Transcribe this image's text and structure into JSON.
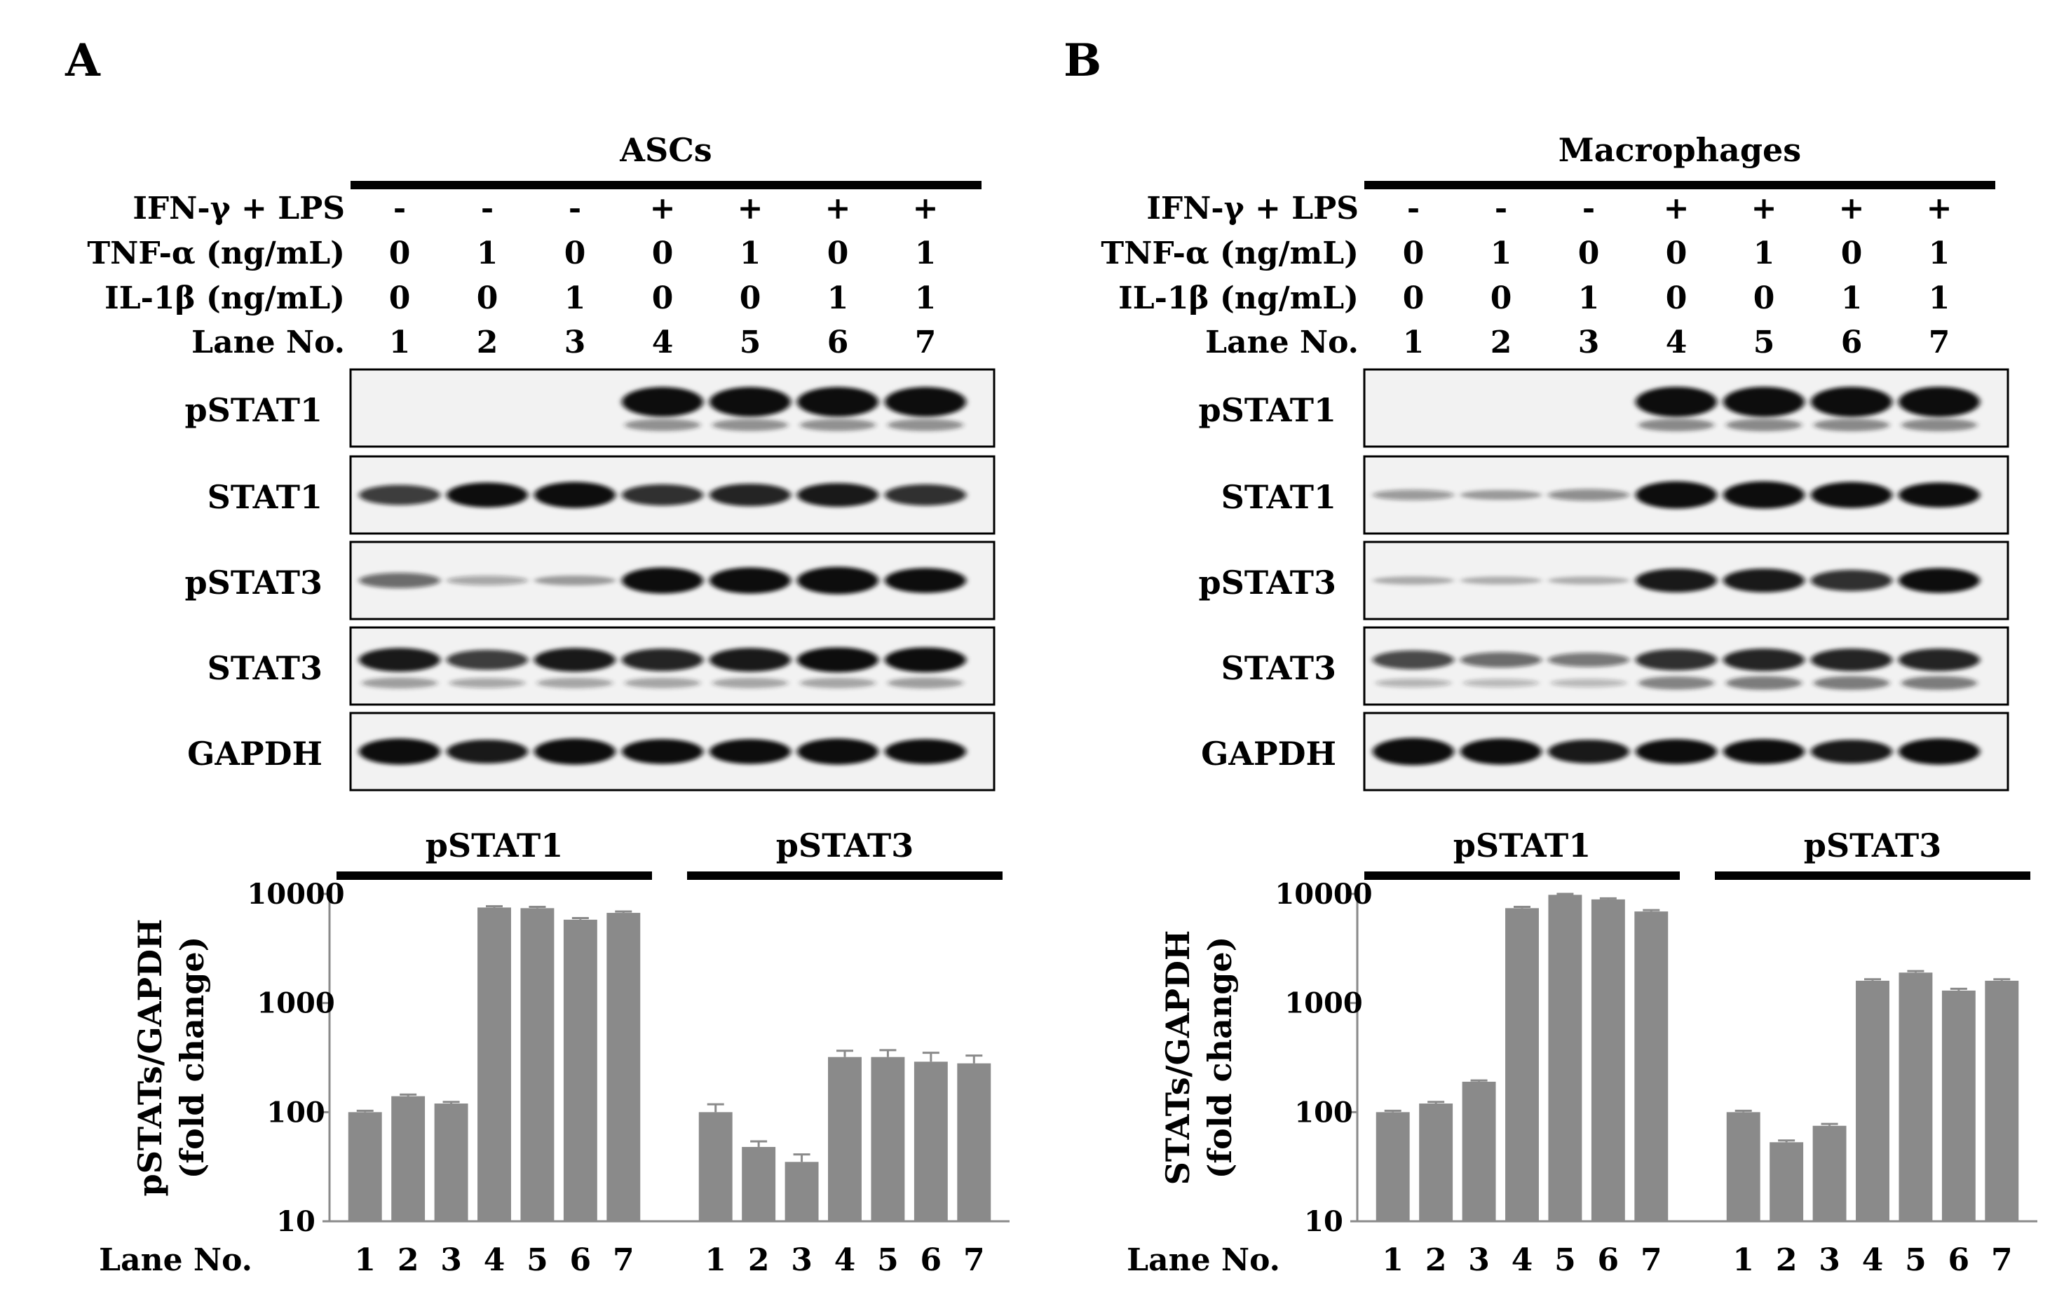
{
  "panels": [
    {
      "letter": "A",
      "cell_type": "ASCs",
      "conditions": {
        "rows": [
          {
            "label": "IFN-γ + LPS",
            "values": [
              "-",
              "-",
              "-",
              "+",
              "+",
              "+",
              "+"
            ]
          },
          {
            "label": "TNF-α (ng/mL)",
            "values": [
              "0",
              "1",
              "0",
              "0",
              "1",
              "0",
              "1"
            ]
          },
          {
            "label": "IL-1β (ng/mL)",
            "values": [
              "0",
              "0",
              "1",
              "0",
              "0",
              "1",
              "1"
            ]
          },
          {
            "label": "Lane No.",
            "values": [
              "1",
              "2",
              "3",
              "4",
              "5",
              "6",
              "7"
            ]
          }
        ]
      },
      "blots": [
        {
          "label": "pSTAT1",
          "main": [
            0,
            0,
            0,
            0.95,
            0.95,
            0.95,
            0.95
          ],
          "lower": [
            0,
            0,
            0,
            0.45,
            0.45,
            0.45,
            0.45
          ]
        },
        {
          "label": "STAT1",
          "main": [
            0.55,
            0.75,
            0.8,
            0.6,
            0.65,
            0.7,
            0.6
          ],
          "lower": [
            0,
            0,
            0,
            0,
            0,
            0,
            0
          ]
        },
        {
          "label": "pSTAT3",
          "main": [
            0.35,
            0.1,
            0.12,
            0.8,
            0.8,
            0.85,
            0.75
          ],
          "lower": [
            0,
            0,
            0,
            0,
            0,
            0,
            0
          ]
        },
        {
          "label": "STAT3",
          "main": [
            0.7,
            0.55,
            0.7,
            0.65,
            0.7,
            0.75,
            0.75
          ],
          "lower": [
            0.35,
            0.25,
            0.3,
            0.3,
            0.3,
            0.3,
            0.35
          ]
        },
        {
          "label": "GAPDH",
          "main": [
            0.8,
            0.7,
            0.8,
            0.75,
            0.75,
            0.8,
            0.75
          ],
          "lower": [
            0,
            0,
            0,
            0,
            0,
            0,
            0
          ]
        }
      ],
      "chart": {
        "ylabel": "pSTATs/GAPDH",
        "ylabel2": "(fold change)",
        "xlabel": "Lane No.",
        "yticks": [
          "10",
          "100",
          "1000",
          "10000"
        ]
      }
    },
    {
      "letter": "B",
      "cell_type": "Macrophages",
      "conditions": {
        "rows": [
          {
            "label": "IFN-γ + LPS",
            "values": [
              "-",
              "-",
              "-",
              "+",
              "+",
              "+",
              "+"
            ]
          },
          {
            "label": "TNF-α (ng/mL)",
            "values": [
              "0",
              "1",
              "0",
              "0",
              "1",
              "0",
              "1"
            ]
          },
          {
            "label": "IL-1β (ng/mL)",
            "values": [
              "0",
              "0",
              "1",
              "0",
              "0",
              "1",
              "1"
            ]
          },
          {
            "label": "Lane No.",
            "values": [
              "1",
              "2",
              "3",
              "4",
              "5",
              "6",
              "7"
            ]
          }
        ]
      },
      "blots": [
        {
          "label": "pSTAT1",
          "main": [
            0,
            0,
            0,
            0.97,
            0.97,
            0.97,
            0.97
          ],
          "lower": [
            0,
            0,
            0,
            0.5,
            0.5,
            0.5,
            0.5
          ]
        },
        {
          "label": "STAT1",
          "main": [
            0.15,
            0.12,
            0.2,
            0.85,
            0.85,
            0.8,
            0.75
          ],
          "lower": [
            0,
            0,
            0,
            0,
            0,
            0,
            0
          ]
        },
        {
          "label": "pSTAT3",
          "main": [
            0.05,
            0.04,
            0.04,
            0.7,
            0.7,
            0.6,
            0.75
          ],
          "lower": [
            0,
            0,
            0,
            0,
            0,
            0,
            0
          ]
        },
        {
          "label": "STAT3",
          "main": [
            0.5,
            0.35,
            0.3,
            0.6,
            0.65,
            0.65,
            0.65
          ],
          "lower": [
            0.15,
            0.12,
            0.12,
            0.55,
            0.6,
            0.6,
            0.6
          ]
        },
        {
          "label": "GAPDH",
          "main": [
            0.85,
            0.8,
            0.7,
            0.75,
            0.75,
            0.7,
            0.8
          ],
          "lower": [
            0,
            0,
            0,
            0,
            0,
            0,
            0
          ]
        }
      ],
      "chart": {
        "ylabel": "STATs/GAPDH",
        "ylabel2": "(fold change)",
        "xlabel": "Lane No.",
        "yticks": [
          "10",
          "100",
          "1000",
          "10000"
        ]
      }
    }
  ],
  "chart_data": [
    {
      "type": "bar",
      "panel": "A",
      "ylabel": "pSTATs/GAPDH (fold change)",
      "xlabel": "Lane No.",
      "yscale": "log",
      "ylim": [
        10,
        10000
      ],
      "grid": false,
      "groups": [
        {
          "name": "pSTAT1",
          "categories": [
            "1",
            "2",
            "3",
            "4",
            "5",
            "6",
            "7"
          ],
          "values": [
            100,
            140,
            120,
            7500,
            7400,
            5800,
            6700
          ],
          "errors": [
            3,
            5,
            4,
            200,
            200,
            200,
            200
          ]
        },
        {
          "name": "pSTAT3",
          "categories": [
            "1",
            "2",
            "3",
            "4",
            "5",
            "6",
            "7"
          ],
          "values": [
            100,
            48,
            35,
            320,
            320,
            290,
            280
          ],
          "errors": [
            18,
            6,
            6,
            45,
            50,
            60,
            50
          ]
        }
      ]
    },
    {
      "type": "bar",
      "panel": "B",
      "ylabel": "STATs/GAPDH (fold change)",
      "xlabel": "Lane No.",
      "yscale": "log",
      "ylim": [
        10,
        10000
      ],
      "grid": false,
      "groups": [
        {
          "name": "pSTAT1",
          "categories": [
            "1",
            "2",
            "3",
            "4",
            "5",
            "6",
            "7"
          ],
          "values": [
            100,
            120,
            190,
            7400,
            9800,
            8900,
            6900
          ],
          "errors": [
            3,
            4,
            5,
            200,
            200,
            200,
            200
          ]
        },
        {
          "name": "pSTAT3",
          "categories": [
            "1",
            "2",
            "3",
            "4",
            "5",
            "6",
            "7"
          ],
          "values": [
            100,
            53,
            75,
            1600,
            1900,
            1300,
            1600
          ],
          "errors": [
            3,
            2,
            3,
            50,
            60,
            50,
            50
          ]
        }
      ]
    }
  ],
  "colors": {
    "bar": "#8a8a8a",
    "blot_band": "#111111"
  }
}
